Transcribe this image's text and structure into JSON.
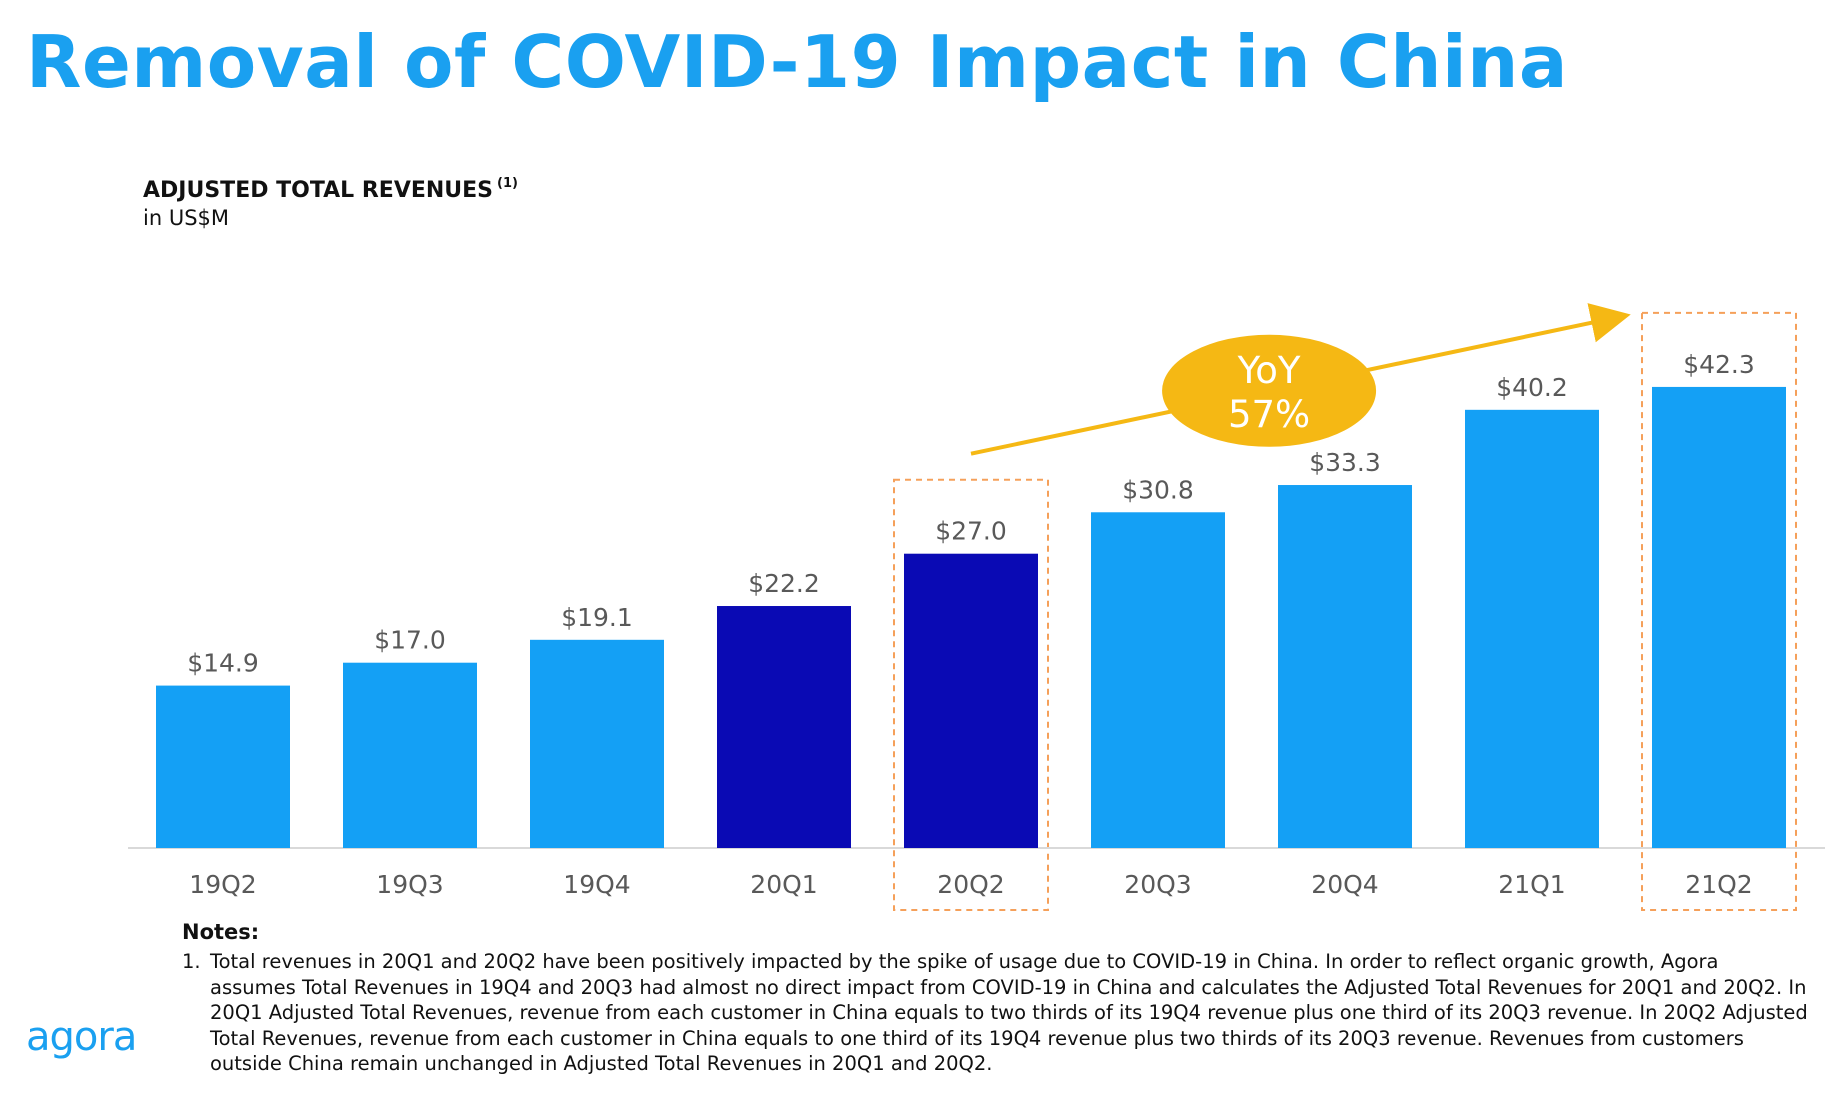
{
  "page": {
    "title": "Removal of COVID-19 Impact in China",
    "logo_text": "agora"
  },
  "chart_data": {
    "type": "bar",
    "title": "ADJUSTED TOTAL REVENUES",
    "title_footnote": "(1)",
    "subtitle": "in US$M",
    "categories": [
      "19Q2",
      "19Q3",
      "19Q4",
      "20Q1",
      "20Q2",
      "20Q3",
      "20Q4",
      "21Q1",
      "21Q2"
    ],
    "values": [
      14.9,
      17.0,
      19.1,
      22.2,
      27.0,
      30.8,
      33.3,
      40.2,
      42.3
    ],
    "value_labels": [
      "$14.9",
      "$17.0",
      "$19.1",
      "$22.2",
      "$27.0",
      "$30.8",
      "$33.3",
      "$40.2",
      "$42.3"
    ],
    "bar_colors": [
      "#14a0f5",
      "#14a0f5",
      "#14a0f5",
      "#0a0ab4",
      "#0a0ab4",
      "#14a0f5",
      "#14a0f5",
      "#14a0f5",
      "#14a0f5"
    ],
    "highlighted_categories": [
      "20Q2",
      "21Q2"
    ],
    "highlight_color": "#f5a05a",
    "arrow": {
      "from": "20Q2",
      "to": "21Q2",
      "color": "#f5b814"
    },
    "badge": {
      "line1": "YoY",
      "line2": "57%",
      "fill": "#f5b814",
      "text_color": "#ffffff"
    },
    "ylim": [
      0,
      50
    ],
    "legend": "none",
    "grid": false
  },
  "notes": {
    "heading": "Notes:",
    "items": [
      {
        "number": "1.",
        "text": "Total revenues in 20Q1 and 20Q2 have been positively impacted by the spike of usage due to COVID-19 in China. In order to reflect organic growth, Agora assumes Total Revenues in 19Q4 and 20Q3 had almost no direct impact from COVID-19 in China and calculates the Adjusted Total Revenues for 20Q1 and 20Q2. In 20Q1 Adjusted Total Revenues, revenue from each customer in China equals to two thirds of its 19Q4 revenue plus one third of its 20Q3 revenue. In 20Q2 Adjusted Total Revenues, revenue from each customer in China equals to one third of its 19Q4 revenue plus two thirds of its 20Q3 revenue. Revenues from customers outside China remain unchanged in Adjusted Total Revenues in 20Q1 and 20Q2."
      }
    ]
  }
}
